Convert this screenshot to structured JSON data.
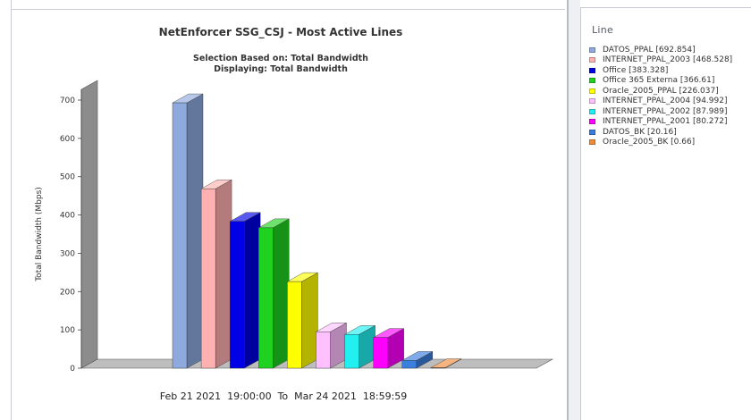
{
  "chart_data": {
    "type": "bar",
    "title": "NetEnforcer SSG_CSJ - Most Active Lines",
    "subtitle_line1": "Selection Based on: Total Bandwidth",
    "subtitle_line2": "Displaying: Total Bandwidth",
    "ylabel": "Total Bandwidth (Mbps)",
    "xlabel": "Feb 21 2021  19:00:00  To  Mar 24 2021  18:59:59",
    "ylim": [
      0,
      700
    ],
    "yticks": [
      0,
      100,
      200,
      300,
      400,
      500,
      600,
      700
    ],
    "legend_title": "Line",
    "legend_position": "right",
    "grid": false,
    "categories": [
      "DATOS_PPAL",
      "INTERNET_PPAL_2003",
      "Office",
      "Office 365 Externa",
      "Oracle_2005_PPAL",
      "INTERNET_PPAL_2004",
      "INTERNET_PPAL_2002",
      "INTERNET_PPAL_2001",
      "DATOS_BK",
      "Oracle_2005_BK"
    ],
    "values": [
      692.854,
      468.528,
      383.328,
      366.61,
      226.037,
      94.992,
      87.989,
      80.272,
      20.16,
      0.66
    ],
    "legend_labels": [
      "DATOS_PPAL [692.854]",
      "INTERNET_PPAL_2003 [468.528]",
      "Office [383.328]",
      "Office 365 Externa [366.61]",
      "Oracle_2005_PPAL [226.037]",
      "INTERNET_PPAL_2004 [94.992]",
      "INTERNET_PPAL_2002 [87.989]",
      "INTERNET_PPAL_2001 [80.272]",
      "DATOS_BK [20.16]",
      "Oracle_2005_BK [0.66]"
    ],
    "colors": [
      "#8ea9dd",
      "#ffb0b0",
      "#0000e6",
      "#1fd21f",
      "#ffff00",
      "#ffc0ff",
      "#22f0f0",
      "#ff00ff",
      "#3a7ede",
      "#f08c3a"
    ]
  }
}
